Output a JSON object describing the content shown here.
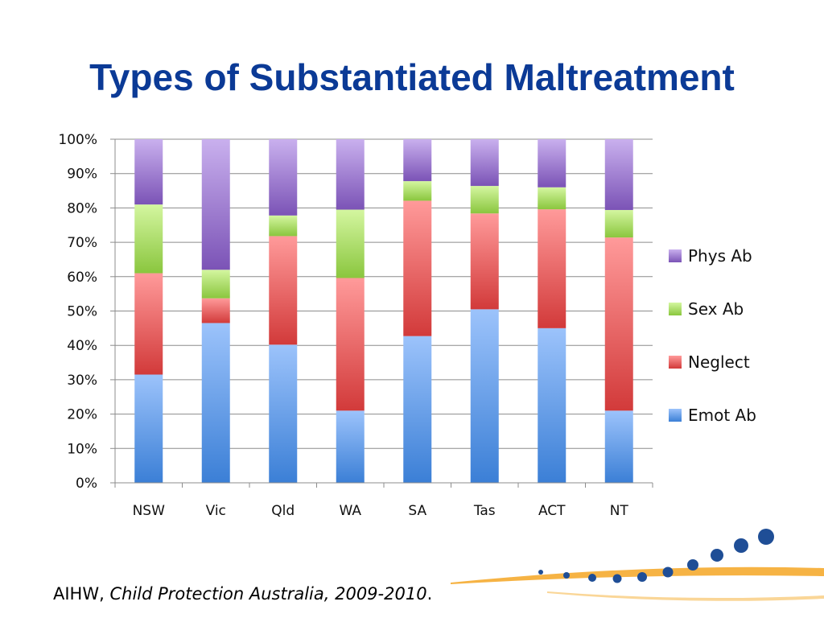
{
  "slide": {
    "title": "Types of Substantiated Maltreatment",
    "footer_source": "AIHW, ",
    "footer_publication": "Child Protection Australia, 2009-2010",
    "footer_end": "."
  },
  "colors": {
    "title": "#0b3a96",
    "Emot Ab": [
      "#9cc3fb",
      "#3b7fd6"
    ],
    "Neglect": [
      "#ff9a9a",
      "#d23a3a"
    ],
    "Sex Ab": [
      "#d4f6a0",
      "#8ac63e"
    ],
    "Phys Ab": [
      "#c9b0ee",
      "#7b53b6"
    ],
    "decor_dots": "#1f4e96",
    "decor_swoosh": "#f5a623"
  },
  "chart_data": {
    "type": "bar",
    "stacked": true,
    "percent": true,
    "title": "",
    "xlabel": "",
    "ylabel": "",
    "ylim": [
      0,
      100
    ],
    "yticks": [
      "0%",
      "10%",
      "20%",
      "30%",
      "40%",
      "50%",
      "60%",
      "70%",
      "80%",
      "90%",
      "100%"
    ],
    "grid": true,
    "legend_position": "right",
    "categories": [
      "NSW",
      "Vic",
      "Qld",
      "WA",
      "SA",
      "Tas",
      "ACT",
      "NT"
    ],
    "series": [
      {
        "name": "Emot Ab",
        "values": [
          31.5,
          46.5,
          40.2,
          21.0,
          42.7,
          50.5,
          45.0,
          21.0
        ]
      },
      {
        "name": "Neglect",
        "values": [
          29.5,
          7.2,
          31.6,
          38.6,
          39.4,
          27.9,
          34.6,
          50.4
        ]
      },
      {
        "name": "Sex Ab",
        "values": [
          20.0,
          8.3,
          6.0,
          19.9,
          5.7,
          8.0,
          6.4,
          8.0
        ]
      },
      {
        "name": "Phys Ab",
        "values": [
          19.0,
          38.0,
          22.2,
          20.5,
          12.2,
          13.6,
          14.0,
          20.6
        ]
      }
    ]
  }
}
